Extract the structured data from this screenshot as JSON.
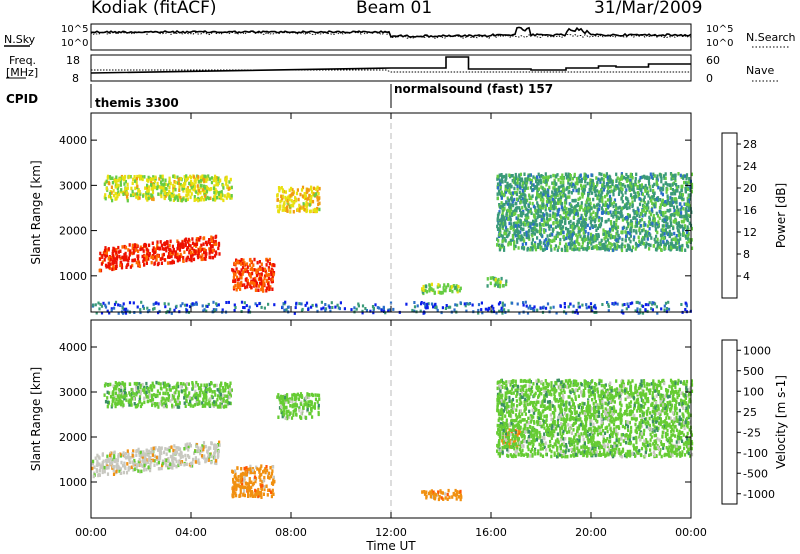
{
  "header": {
    "station": "Kodiak (fitACF)",
    "beam": "Beam 01",
    "date": "31/Mar/2009"
  },
  "top_panels": {
    "nsky_label": "N.Sky",
    "nsky_ticks": [
      "10^5",
      "10^0"
    ],
    "nsearch_label": "N.Search",
    "nsearch_ticks": [
      "10^5",
      "10^0"
    ],
    "freq_label": "Freq.",
    "freq_unit": "[MHz]",
    "freq_ticks": [
      "18",
      "8"
    ],
    "nave_label": "Nave",
    "nave_ticks": [
      "60",
      "0"
    ],
    "cpid_label": "CPID",
    "cpid_segments": [
      {
        "label": "themis 3300",
        "start_hour": 0
      },
      {
        "label": "normalsound (fast) 157",
        "start_hour": 12
      }
    ]
  },
  "chart_data": [
    {
      "type": "heatmap",
      "title": "",
      "xlabel": "Time UT",
      "ylabel": "Slant Range [km]",
      "xlim": [
        0,
        24
      ],
      "ylim": [
        200,
        4600
      ],
      "x_ticks": [
        "00:00",
        "04:00",
        "08:00",
        "12:00",
        "16:00",
        "20:00",
        "00:00"
      ],
      "y_ticks": [
        1000,
        2000,
        3000,
        4000
      ],
      "colorbar": {
        "label": "Power [dB]",
        "ticks": [
          4,
          8,
          12,
          16,
          20,
          24,
          28
        ],
        "range": [
          0,
          30
        ],
        "colors": [
          "#0a1ee8",
          "#2a6ec8",
          "#3a9a78",
          "#66cc44",
          "#e8e010",
          "#f09a10",
          "#ff6a00",
          "#ee1100"
        ]
      },
      "features": [
        {
          "time_range": [
            0.3,
            5.1
          ],
          "range_km": [
            1150,
            1650
          ],
          "value": 28
        },
        {
          "time_range": [
            0.5,
            5.6
          ],
          "range_km": [
            2700,
            3250
          ],
          "value": 16
        },
        {
          "time_range": [
            5.6,
            7.3
          ],
          "range_km": [
            700,
            1400
          ],
          "value": 26
        },
        {
          "time_range": [
            7.4,
            9.1
          ],
          "range_km": [
            2450,
            3000
          ],
          "value": 18
        },
        {
          "time_range": [
            13.2,
            14.8
          ],
          "range_km": [
            650,
            850
          ],
          "value": 14
        },
        {
          "time_range": [
            15.8,
            16.6
          ],
          "range_km": [
            800,
            1000
          ],
          "value": 12
        },
        {
          "time_range": [
            16.2,
            24.0
          ],
          "range_km": [
            1600,
            3300
          ],
          "value": 10
        },
        {
          "time_range": [
            0.0,
            24.0
          ],
          "range_km": [
            200,
            450
          ],
          "value": 8
        }
      ]
    },
    {
      "type": "heatmap",
      "title": "",
      "xlabel": "Time UT",
      "ylabel": "Slant Range [km]",
      "xlim": [
        0,
        24
      ],
      "ylim": [
        200,
        4600
      ],
      "x_ticks": [
        "00:00",
        "04:00",
        "08:00",
        "12:00",
        "16:00",
        "20:00",
        "00:00"
      ],
      "y_ticks": [
        1000,
        2000,
        3000,
        4000
      ],
      "colorbar": {
        "label": "Velocity [m s-1]",
        "ticks": [
          "1000",
          "500",
          "100",
          "25",
          "-25",
          "-100",
          "-500",
          "-1000"
        ],
        "colors": [
          "#1a30c0",
          "#2a7ab0",
          "#3a9060",
          "#66cc33",
          "#c8c8c0",
          "#f09010",
          "#ff5500",
          "#ee1100"
        ]
      },
      "features": [
        {
          "time_range": [
            0.0,
            5.1
          ],
          "range_km": [
            1150,
            1650
          ],
          "value": "-25"
        },
        {
          "time_range": [
            0.5,
            5.6
          ],
          "range_km": [
            2700,
            3250
          ],
          "value": "25"
        },
        {
          "time_range": [
            5.6,
            7.3
          ],
          "range_km": [
            700,
            1400
          ],
          "value": "-100"
        },
        {
          "time_range": [
            7.4,
            9.1
          ],
          "range_km": [
            2450,
            3000
          ],
          "value": "25"
        },
        {
          "time_range": [
            13.2,
            14.8
          ],
          "range_km": [
            650,
            850
          ],
          "value": "-100"
        },
        {
          "time_range": [
            16.4,
            17.2
          ],
          "range_km": [
            1800,
            2200
          ],
          "value": "-100"
        },
        {
          "time_range": [
            16.2,
            24.0
          ],
          "range_km": [
            1600,
            3300
          ],
          "value": "25"
        }
      ]
    }
  ]
}
